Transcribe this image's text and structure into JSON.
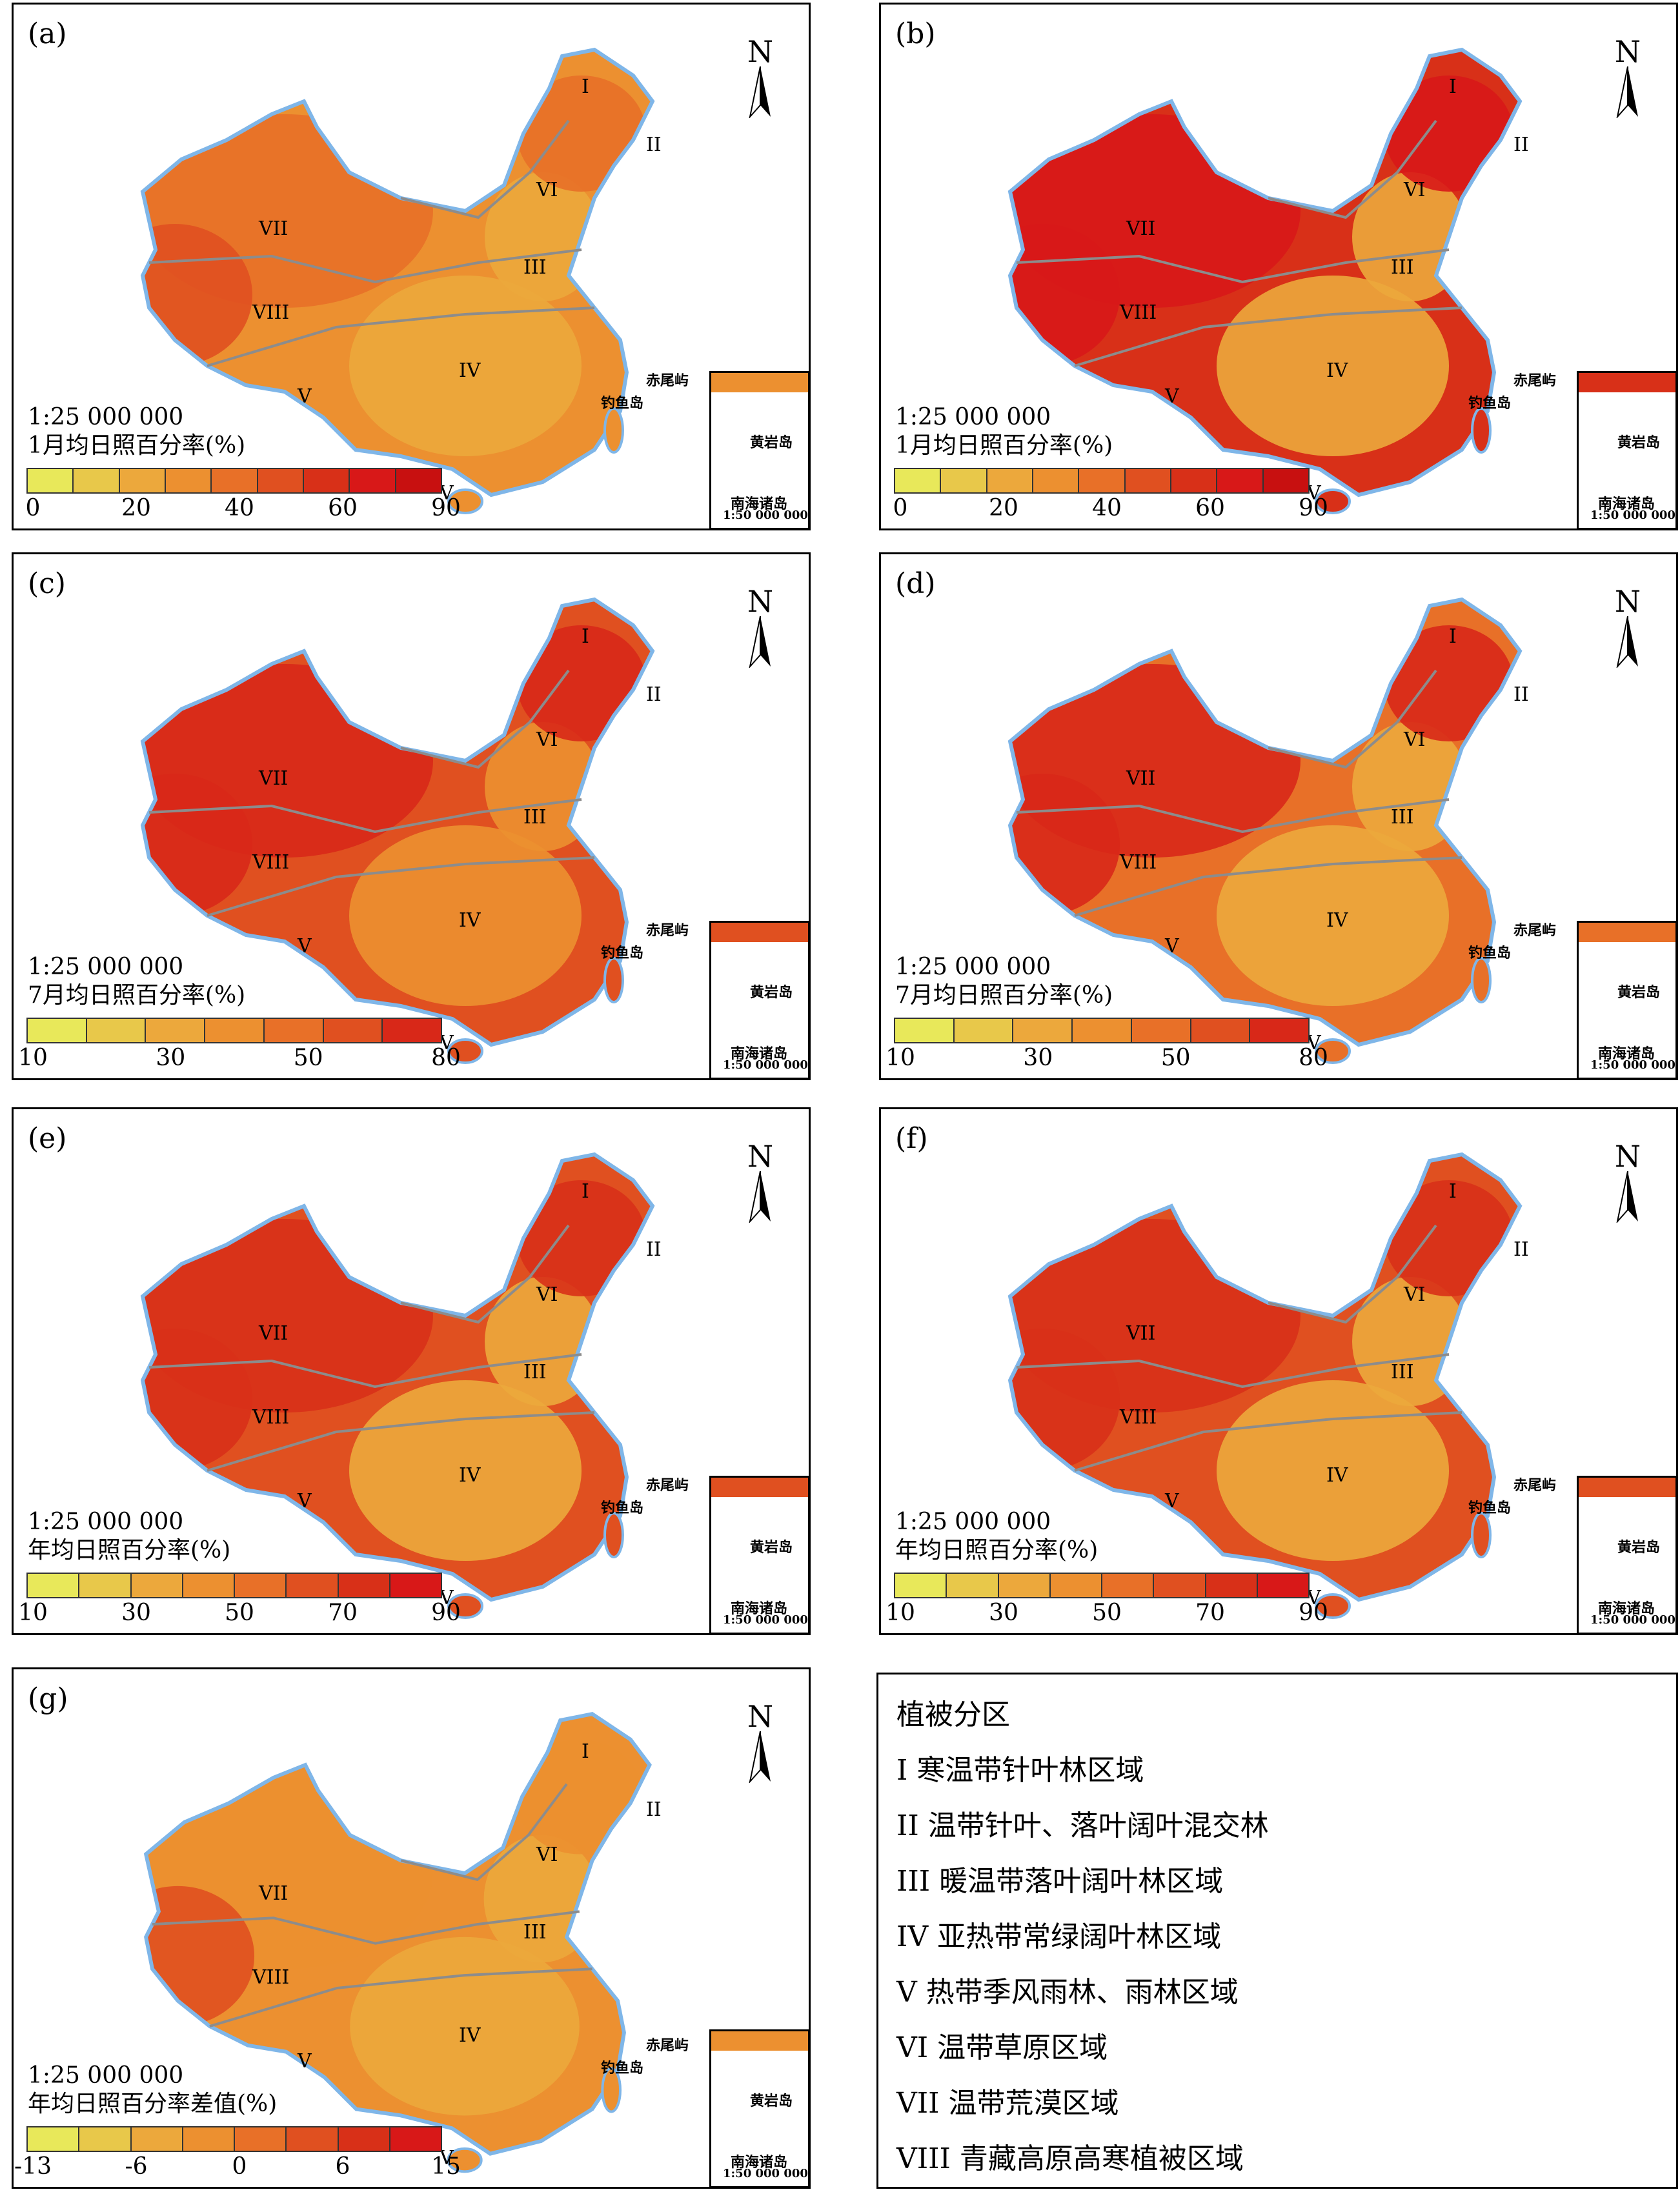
{
  "scale_text": "1:25 000 000",
  "north_label": "N",
  "island_labels": {
    "chiwei": "赤尾屿",
    "diaoyu": "钓鱼岛",
    "huangyan": "黄岩岛",
    "nanhai": "南海诸岛",
    "inset_scale": "1:50 000 000"
  },
  "region_numerals": [
    "I",
    "II",
    "III",
    "IV",
    "V",
    "VI",
    "VII",
    "VIII"
  ],
  "panels": [
    {
      "label": "(a)",
      "title": "1月均日照百分率(%)",
      "ticks": [
        "0",
        "20",
        "40",
        "60",
        "90"
      ],
      "palette": [
        "#e8e85a",
        "#e8c84a",
        "#eca83c",
        "#ec9030",
        "#e87028",
        "#e05020",
        "#d83018",
        "#d81818",
        "#c81010"
      ]
    },
    {
      "label": "(b)",
      "title": "1月均日照百分率(%)",
      "ticks": [
        "0",
        "20",
        "40",
        "60",
        "90"
      ],
      "palette": [
        "#e8e85a",
        "#e8c84a",
        "#eca83c",
        "#ec9030",
        "#e87028",
        "#e05020",
        "#d83018",
        "#d81818",
        "#c81010"
      ]
    },
    {
      "label": "(c)",
      "title": "7月均日照百分率(%)",
      "ticks": [
        "10",
        "30",
        "50",
        "80"
      ],
      "palette": [
        "#e8e85a",
        "#e8c84a",
        "#eca83c",
        "#ec9030",
        "#e87028",
        "#e05020",
        "#d82818"
      ]
    },
    {
      "label": "(d)",
      "title": "7月均日照百分率(%)",
      "ticks": [
        "10",
        "30",
        "50",
        "80"
      ],
      "palette": [
        "#e8e85a",
        "#e8c84a",
        "#eca83c",
        "#ec9030",
        "#e87028",
        "#e05020",
        "#d82818"
      ]
    },
    {
      "label": "(e)",
      "title": "年均日照百分率(%)",
      "ticks": [
        "10",
        "30",
        "50",
        "70",
        "90"
      ],
      "palette": [
        "#e8e85a",
        "#e8c84a",
        "#eca83c",
        "#ec9030",
        "#e87028",
        "#e05020",
        "#d83018",
        "#d81818"
      ]
    },
    {
      "label": "(f)",
      "title": "年均日照百分率(%)",
      "ticks": [
        "10",
        "30",
        "50",
        "70",
        "90"
      ],
      "palette": [
        "#e8e85a",
        "#e8c84a",
        "#eca83c",
        "#ec9030",
        "#e87028",
        "#e05020",
        "#d83018",
        "#d81818"
      ]
    },
    {
      "label": "(g)",
      "title": "年均日照百分率差值(%)",
      "ticks": [
        "-13",
        "-6",
        "0",
        "6",
        "15"
      ],
      "palette": [
        "#e8e85a",
        "#e8c84a",
        "#eca83c",
        "#ec9030",
        "#e87028",
        "#e05020",
        "#d83018",
        "#d81818"
      ]
    }
  ],
  "legend": {
    "title": "植被分区",
    "items": [
      "I 寒温带针叶林区域",
      "II 温带针叶、落叶阔叶混交林",
      "III 暖温带落叶阔叶林区域",
      "IV 亚热带常绿阔叶林区域",
      "V 热带季风雨林、雨林区域",
      "VI 温带草原区域",
      "VII 温带荒漠区域",
      "VIII 青藏高原高寒植被区域"
    ]
  }
}
